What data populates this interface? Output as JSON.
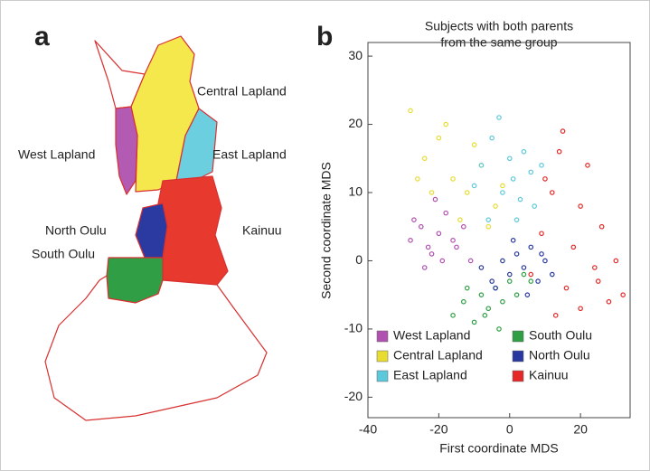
{
  "panel_labels": [
    "a",
    "b"
  ],
  "map": {
    "labels": [
      "Central Lapland",
      "West Lapland",
      "East Lapland",
      "North Oulu",
      "Kainuu",
      "South Oulu"
    ]
  },
  "chart_data": {
    "type": "scatter",
    "title": [
      "Subjects with both parents",
      "from the same group"
    ],
    "xlabel": "First coordinate MDS",
    "ylabel": "Second coordinate MDS",
    "xlim": [
      -40,
      34
    ],
    "ylim": [
      -23,
      32
    ],
    "xticks": [
      -40,
      -20,
      0,
      20
    ],
    "yticks": [
      -20,
      -10,
      0,
      10,
      20,
      30
    ],
    "series": [
      {
        "name": "West Lapland",
        "color": "#b050b0",
        "x": [
          -28,
          -25,
          -22,
          -20,
          -18,
          -15,
          -24,
          -19,
          -13,
          -27,
          -21,
          -16,
          -23,
          -11
        ],
        "y": [
          3,
          5,
          1,
          4,
          7,
          2,
          -1,
          0,
          5,
          6,
          9,
          3,
          2,
          0
        ]
      },
      {
        "name": "Central Lapland",
        "color": "#e8dc30",
        "x": [
          -28,
          -24,
          -20,
          -16,
          -12,
          -8,
          -4,
          -22,
          -18,
          -14,
          -10,
          -26,
          -6,
          -2
        ],
        "y": [
          22,
          15,
          18,
          12,
          10,
          14,
          8,
          10,
          20,
          6,
          17,
          12,
          5,
          11
        ]
      },
      {
        "name": "East Lapland",
        "color": "#5cc8dc",
        "x": [
          -8,
          -5,
          -2,
          1,
          4,
          7,
          -6,
          -3,
          0,
          3,
          6,
          -10,
          9,
          2
        ],
        "y": [
          14,
          18,
          10,
          12,
          16,
          8,
          6,
          21,
          15,
          9,
          13,
          11,
          14,
          6
        ]
      },
      {
        "name": "South Oulu",
        "color": "#2f9e44",
        "x": [
          -16,
          -13,
          -10,
          -8,
          -6,
          -4,
          -2,
          0,
          2,
          4,
          -12,
          -7,
          -3,
          6
        ],
        "y": [
          -8,
          -6,
          -9,
          -5,
          -7,
          -4,
          -6,
          -3,
          -5,
          -2,
          -4,
          -8,
          -10,
          -3
        ]
      },
      {
        "name": "North Oulu",
        "color": "#2838a0",
        "x": [
          -8,
          -5,
          -2,
          0,
          2,
          4,
          6,
          8,
          10,
          12,
          -4,
          1,
          5,
          9
        ],
        "y": [
          -1,
          -3,
          0,
          -2,
          1,
          -1,
          2,
          -3,
          0,
          -2,
          -4,
          3,
          -5,
          1
        ]
      },
      {
        "name": "Kainuu",
        "color": "#e42828",
        "x": [
          6,
          9,
          12,
          14,
          16,
          18,
          20,
          22,
          24,
          26,
          28,
          30,
          15,
          20,
          10,
          25,
          13,
          32
        ],
        "y": [
          -2,
          4,
          10,
          16,
          -4,
          2,
          8,
          14,
          -1,
          5,
          -6,
          0,
          19,
          -7,
          12,
          -3,
          -8,
          -5
        ]
      }
    ]
  }
}
